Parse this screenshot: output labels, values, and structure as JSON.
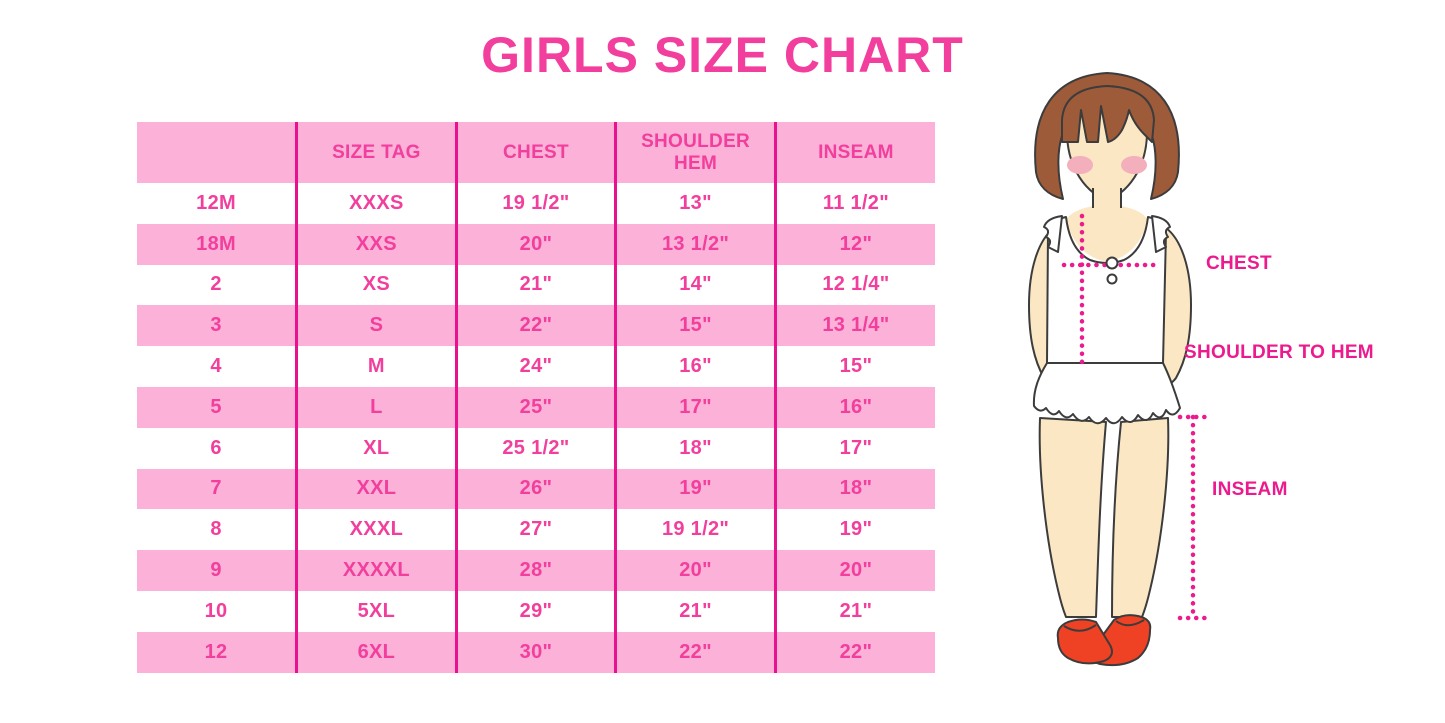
{
  "page": {
    "title": "GIRLS SIZE CHART"
  },
  "colors": {
    "deep_pink": "#F23E9C",
    "light_pink": "#FBB1D8",
    "line_pink": "#E9128C",
    "label_pink": "#EC1A8D",
    "hair": "#9E5B3A",
    "skin": "#FBE7C3",
    "blush": "#F3AFBC",
    "shoe": "#EF4123",
    "outline": "#3C3C3C"
  },
  "chart_data": {
    "type": "table",
    "title": "GIRLS SIZE CHART",
    "columns": [
      "",
      "SIZE TAG",
      "CHEST",
      "SHOULDER HEM",
      "INSEAM"
    ],
    "rows": [
      [
        "12M",
        "XXXS",
        "19 1/2\"",
        "13\"",
        "11 1/2\""
      ],
      [
        "18M",
        "XXS",
        "20\"",
        "13 1/2\"",
        "12\""
      ],
      [
        "2",
        "XS",
        "21\"",
        "14\"",
        "12 1/4\""
      ],
      [
        "3",
        "S",
        "22\"",
        "15\"",
        "13 1/4\""
      ],
      [
        "4",
        "M",
        "24\"",
        "16\"",
        "15\""
      ],
      [
        "5",
        "L",
        "25\"",
        "17\"",
        "16\""
      ],
      [
        "6",
        "XL",
        "25 1/2\"",
        "18\"",
        "17\""
      ],
      [
        "7",
        "XXL",
        "26\"",
        "19\"",
        "18\""
      ],
      [
        "8",
        "XXXL",
        "27\"",
        "19 1/2\"",
        "19\""
      ],
      [
        "9",
        "XXXXL",
        "28\"",
        "20\"",
        "20\""
      ],
      [
        "10",
        "5XL",
        "29\"",
        "21\"",
        "21\""
      ],
      [
        "12",
        "6XL",
        "30\"",
        "22\"",
        "22\""
      ]
    ],
    "layout": {
      "stripe_pattern": "header pink, then alternating white/pink rows",
      "grid": "vertical magenta column dividers only"
    }
  },
  "figure": {
    "description": "illustrated girl with measurement guide lines",
    "labels": {
      "chest": "CHEST",
      "shoulder_to_hem": "SHOULDER TO HEM",
      "inseam": "INSEAM"
    }
  }
}
